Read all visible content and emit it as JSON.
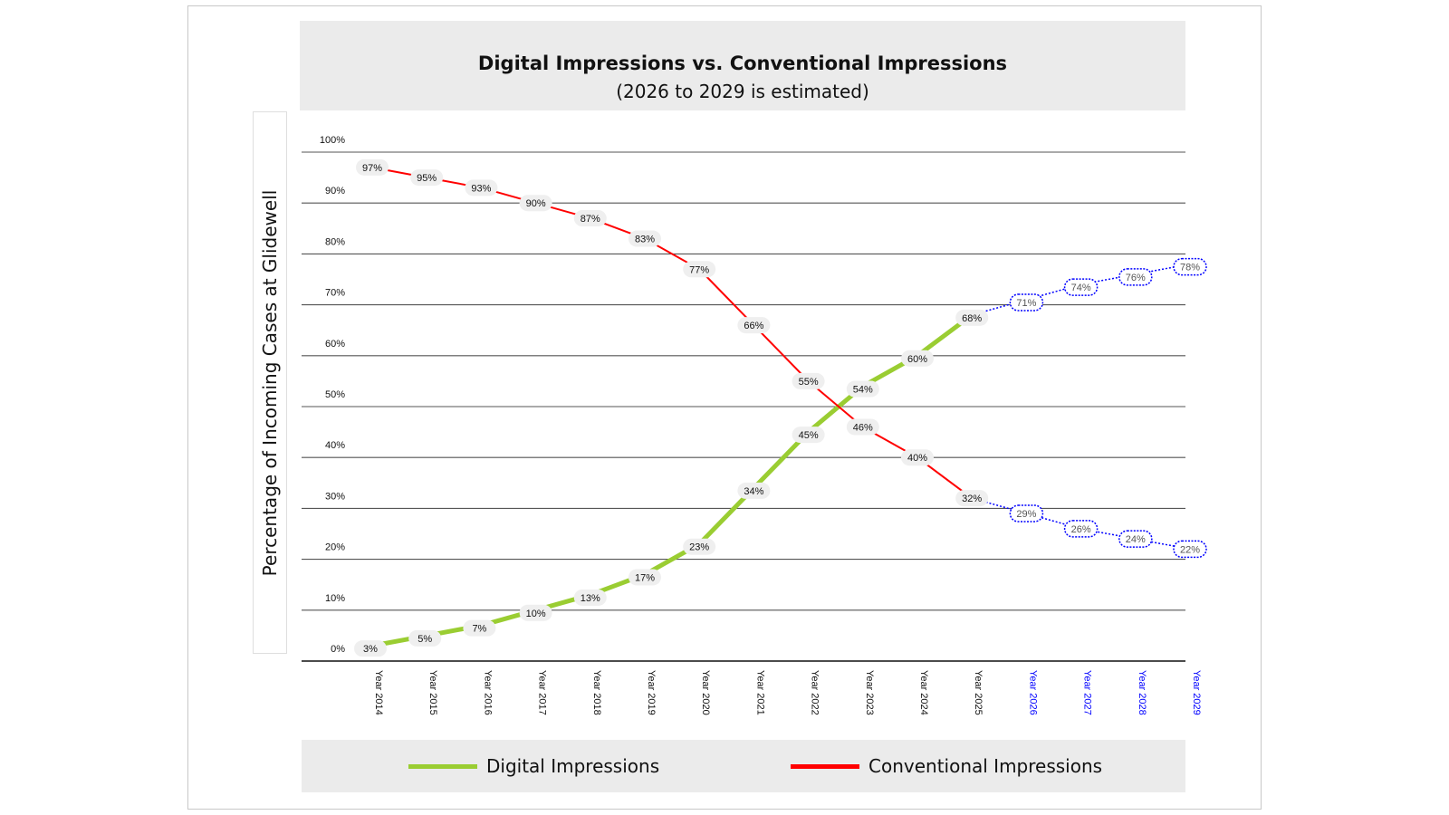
{
  "chart_data": {
    "type": "line",
    "title": "Digital Impressions vs. Conventional Impressions",
    "subtitle": "(2026 to 2029 is estimated)",
    "ylabel": "Percentage of Incoming Cases at Glidewell",
    "xlabel": "",
    "ylim": [
      0,
      100
    ],
    "yticks": [
      "0%",
      "10%",
      "20%",
      "30%",
      "40%",
      "50%",
      "60%",
      "70%",
      "80%",
      "90%",
      "100%"
    ],
    "categories": [
      "Year 2014",
      "Year 2015",
      "Year 2016",
      "Year 2017",
      "Year 2018",
      "Year 2019",
      "Year 2020",
      "Year 2021",
      "Year 2022",
      "Year 2023",
      "Year 2024",
      "Year 2025",
      "Year 2026",
      "Year 2027",
      "Year 2028",
      "Year 2029"
    ],
    "estimated_from_index": 12,
    "grid": true,
    "legend_position": "bottom",
    "series": [
      {
        "name": "Digital Impressions",
        "color": "#9acd32",
        "values": [
          3,
          5,
          7,
          10,
          13,
          17,
          23,
          34,
          45,
          54,
          60,
          68,
          71,
          74,
          76,
          78
        ],
        "labels": [
          "3%",
          "5%",
          "7%",
          "10%",
          "13%",
          "17%",
          "23%",
          "34%",
          "45%",
          "54%",
          "60%",
          "68%",
          "71%",
          "74%",
          "76%",
          "78%"
        ]
      },
      {
        "name": "Conventional Impressions",
        "color": "#ff0000",
        "values": [
          97,
          95,
          93,
          90,
          87,
          83,
          77,
          66,
          55,
          46,
          40,
          32,
          29,
          26,
          24,
          22
        ],
        "labels": [
          "97%",
          "95%",
          "93%",
          "90%",
          "87%",
          "83%",
          "77%",
          "66%",
          "55%",
          "46%",
          "40%",
          "32%",
          "29%",
          "26%",
          "24%",
          "22%"
        ]
      }
    ],
    "estimated_color": "#0000ff"
  }
}
